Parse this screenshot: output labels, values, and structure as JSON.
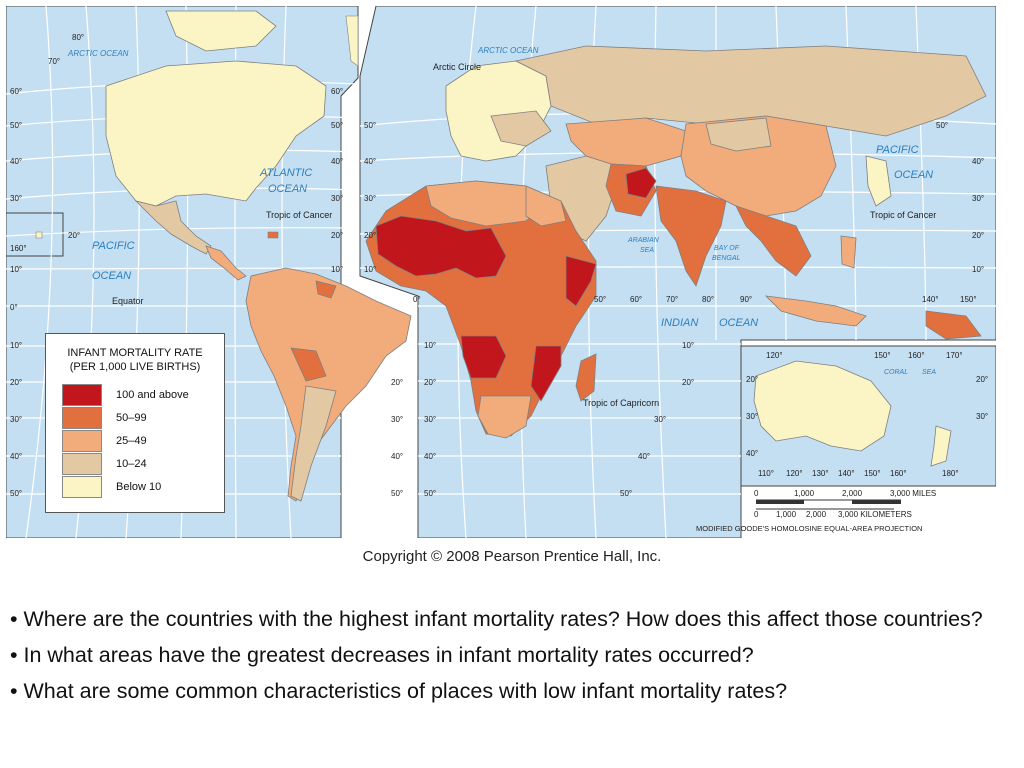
{
  "map": {
    "ocean_labels": {
      "arctic_left": "ARCTIC OCEAN",
      "arctic_right": "ARCTIC OCEAN",
      "atlantic_1": "ATLANTIC",
      "atlantic_2": "OCEAN",
      "pacific_left_1": "PACIFIC",
      "pacific_left_2": "OCEAN",
      "pacific_right_1": "PACIFIC",
      "pacific_right_2": "OCEAN",
      "indian_1": "INDIAN",
      "indian_2": "OCEAN",
      "arabian_1": "ARABIAN",
      "arabian_2": "SEA",
      "bengal_1": "BAY OF",
      "bengal_2": "BENGAL",
      "coral_1": "CORAL",
      "coral_2": "SEA"
    },
    "lines": {
      "arctic_circle": "Arctic Circle",
      "tropic_cancer_left": "Tropic of Cancer",
      "tropic_cancer_right": "Tropic of Cancer",
      "equator": "Equator",
      "tropic_capricorn": "Tropic of Capricorn"
    },
    "lat_labels_left": [
      "80°",
      "70°",
      "60°",
      "50°",
      "40°",
      "30°",
      "20°",
      "10°",
      "0°",
      "10°",
      "20°",
      "30°",
      "40°",
      "50°"
    ],
    "lat_labels_mid": [
      "60°",
      "50°",
      "40°",
      "30°",
      "20°",
      "10°"
    ],
    "lat_labels_americas_s": [
      "20°",
      "30°",
      "40°",
      "50°"
    ],
    "lat_labels_east": [
      "50°",
      "40°",
      "30°",
      "20°",
      "10°"
    ],
    "lat_labels_africa": [
      "10°",
      "20°",
      "30°",
      "40°",
      "50°"
    ],
    "lat_labels_africa_mid": [
      "10°",
      "20°",
      "30°",
      "40°",
      "50°"
    ],
    "lon_labels_eurasia": [
      "50°",
      "60°",
      "70°",
      "80°",
      "90°",
      "140°",
      "150°"
    ],
    "misc_labels": {
      "lon_160": "160°",
      "lat_20": "20°",
      "lon_0": "0°"
    },
    "australia_inset": {
      "lon_top": [
        "120°",
        "150°",
        "160°",
        "170°"
      ],
      "lon_bottom": [
        "110°",
        "120°",
        "130°",
        "140°",
        "150°",
        "160°",
        "180°"
      ],
      "lat": [
        "20°",
        "30°",
        "40°"
      ],
      "lat_right": [
        "20°",
        "30°"
      ]
    },
    "scale": {
      "miles_ticks": [
        "0",
        "1,000",
        "2,000",
        "3,000 MILES"
      ],
      "km_ticks": [
        "0",
        "1,000",
        "2,000",
        "3,000 KILOMETERS"
      ],
      "projection": "MODIFIED GOODE'S HOMOLOSINE EQUAL-AREA PROJECTION"
    }
  },
  "legend": {
    "title_line1": "INFANT MORTALITY RATE",
    "title_line2": "(PER 1,000 LIVE BIRTHS)",
    "classes": [
      {
        "label": "100 and above",
        "color": "#c1161c"
      },
      {
        "label": "50–99",
        "color": "#e2703f"
      },
      {
        "label": "25–49",
        "color": "#f2ab7a"
      },
      {
        "label": "10–24",
        "color": "#e2c9a4"
      },
      {
        "label": "Below 10",
        "color": "#fbf4c4"
      }
    ]
  },
  "colors": {
    "ocean": "#c4dff2",
    "grid": "#ffffff",
    "border": "#7f7f7f",
    "label_blue": "#2b7fc0"
  },
  "copyright": "Copyright © 2008 Pearson Prentice Hall, Inc.",
  "questions": [
    "•  Where are the countries with the highest infant mortality rates?  How does this affect those countries?",
    "•  In what areas have the greatest decreases in infant mortality rates occurred?",
    "•  What are some common characteristics of places with low infant mortality rates?"
  ]
}
